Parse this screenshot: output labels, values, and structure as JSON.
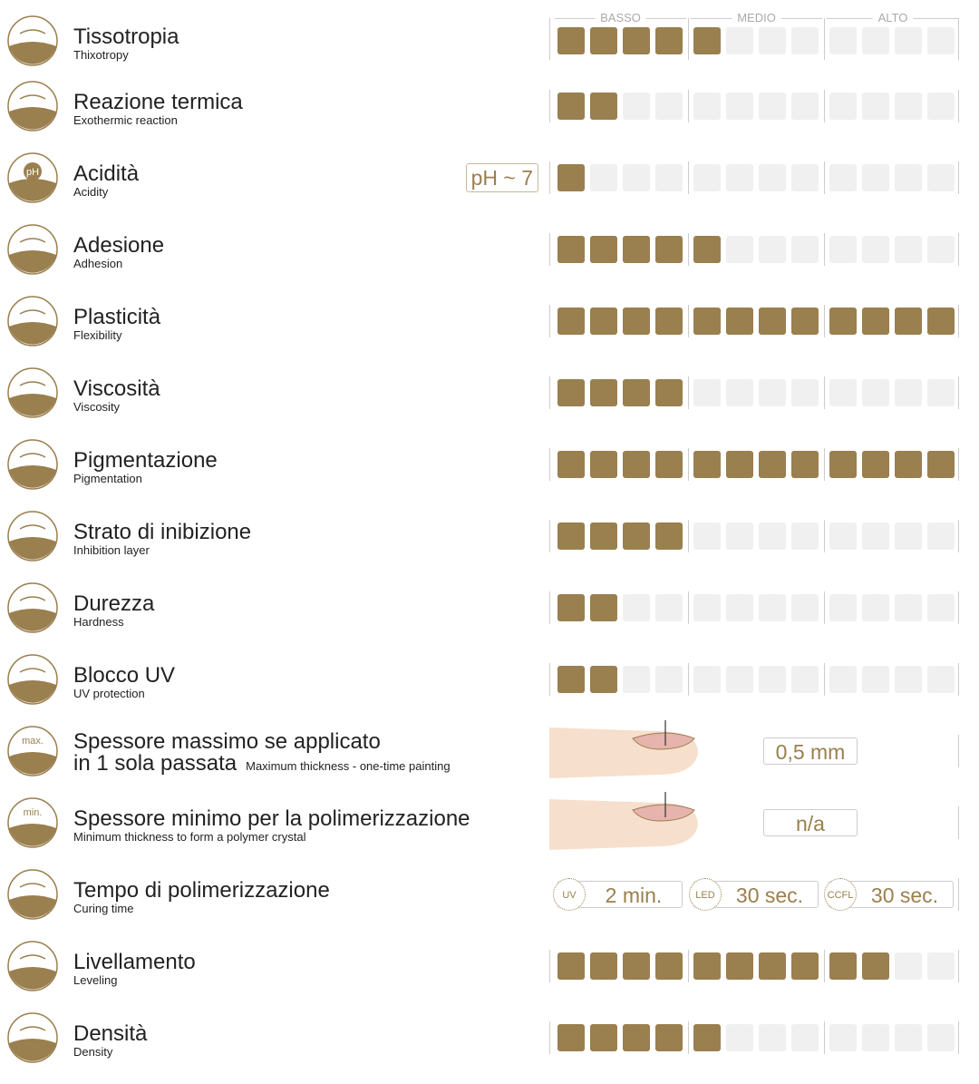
{
  "scale": {
    "labels": [
      "BASSO",
      "MEDIO",
      "ALTO"
    ],
    "segments": 12
  },
  "rows": [
    {
      "title": "Tissotropia",
      "subtitle": "Thixotropy",
      "level": 5
    },
    {
      "title": "Reazione termica",
      "subtitle": "Exothermic reaction",
      "level": 2
    },
    {
      "title": "Acidità",
      "subtitle": "Acidity",
      "level": 1,
      "badge": "pH ~ 7",
      "icon_text": "pH"
    },
    {
      "title": "Adesione",
      "subtitle": "Adhesion",
      "level": 5
    },
    {
      "title": "Plasticità",
      "subtitle": "Flexibility",
      "level": 12
    },
    {
      "title": "Viscosità",
      "subtitle": "Viscosity",
      "level": 4
    },
    {
      "title": "Pigmentazione",
      "subtitle": "Pigmentation",
      "level": 12
    },
    {
      "title": "Strato di inibizione",
      "subtitle": "Inhibition layer",
      "level": 4
    },
    {
      "title": "Durezza",
      "subtitle": "Hardness",
      "level": 2
    },
    {
      "title": "Blocco UV",
      "subtitle": "UV protection",
      "level": 2
    },
    {
      "title": [
        "Spessore massimo se applicato",
        "in 1 sola passata"
      ],
      "subtitle": "Maximum thickness - one-time painting",
      "value": "0,5 mm",
      "icon_text": "max."
    },
    {
      "title": "Spessore minimo per la polimerizzazione",
      "subtitle": "Minimum thickness to form a polymer crystal",
      "value": "n/a",
      "icon_text": "min."
    },
    {
      "title": "Tempo di polimerizzazione",
      "subtitle": "Curing time",
      "curing": [
        {
          "lamp": "UV",
          "time": "2 min."
        },
        {
          "lamp": "LED",
          "time": "30 sec."
        },
        {
          "lamp": "CCFL",
          "time": "30 sec."
        }
      ]
    },
    {
      "title": "Livellamento",
      "subtitle": "Leveling",
      "level": 10
    },
    {
      "title": "Densità",
      "subtitle": "Density",
      "level": 5
    }
  ]
}
